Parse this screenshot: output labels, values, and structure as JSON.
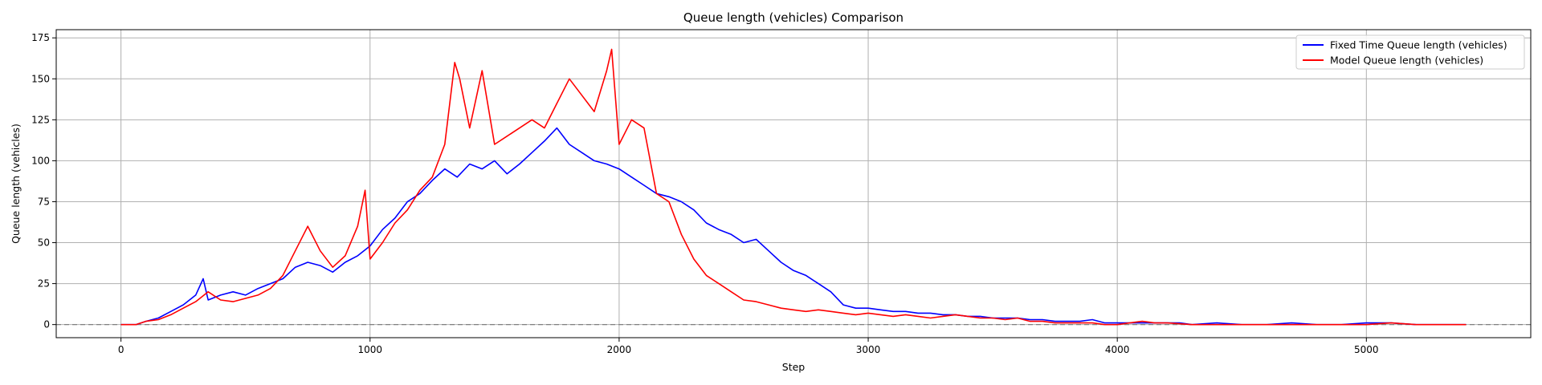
{
  "chart_data": {
    "type": "line",
    "title": "Queue length (vehicles) Comparison",
    "xlabel": "Step",
    "ylabel": "Queue length (vehicles)",
    "xlim": [
      -260,
      5660
    ],
    "ylim": [
      -8,
      180
    ],
    "x_ticks": [
      0,
      1000,
      2000,
      3000,
      4000,
      5000
    ],
    "y_ticks": [
      0,
      25,
      50,
      75,
      100,
      125,
      150,
      175
    ],
    "grid": true,
    "legend_position": "top-right",
    "reference_line": {
      "y": 0,
      "style": "dashed",
      "color": "#808080"
    },
    "series": [
      {
        "name": "Fixed Time Queue length (vehicles)",
        "color": "#0000ff",
        "points": [
          [
            0,
            0
          ],
          [
            60,
            0
          ],
          [
            100,
            2
          ],
          [
            150,
            4
          ],
          [
            200,
            8
          ],
          [
            250,
            12
          ],
          [
            300,
            18
          ],
          [
            330,
            28
          ],
          [
            350,
            15
          ],
          [
            400,
            18
          ],
          [
            450,
            20
          ],
          [
            500,
            18
          ],
          [
            550,
            22
          ],
          [
            600,
            25
          ],
          [
            650,
            28
          ],
          [
            700,
            35
          ],
          [
            750,
            38
          ],
          [
            800,
            36
          ],
          [
            850,
            32
          ],
          [
            900,
            38
          ],
          [
            950,
            42
          ],
          [
            1000,
            48
          ],
          [
            1050,
            58
          ],
          [
            1100,
            65
          ],
          [
            1150,
            75
          ],
          [
            1200,
            80
          ],
          [
            1250,
            88
          ],
          [
            1300,
            95
          ],
          [
            1350,
            90
          ],
          [
            1400,
            98
          ],
          [
            1450,
            95
          ],
          [
            1500,
            100
          ],
          [
            1550,
            92
          ],
          [
            1600,
            98
          ],
          [
            1650,
            105
          ],
          [
            1700,
            112
          ],
          [
            1750,
            120
          ],
          [
            1800,
            110
          ],
          [
            1850,
            105
          ],
          [
            1900,
            100
          ],
          [
            1950,
            98
          ],
          [
            2000,
            95
          ],
          [
            2050,
            90
          ],
          [
            2100,
            85
          ],
          [
            2150,
            80
          ],
          [
            2200,
            78
          ],
          [
            2250,
            75
          ],
          [
            2300,
            70
          ],
          [
            2350,
            62
          ],
          [
            2400,
            58
          ],
          [
            2450,
            55
          ],
          [
            2500,
            50
          ],
          [
            2550,
            52
          ],
          [
            2600,
            45
          ],
          [
            2650,
            38
          ],
          [
            2700,
            33
          ],
          [
            2750,
            30
          ],
          [
            2800,
            25
          ],
          [
            2850,
            20
          ],
          [
            2900,
            12
          ],
          [
            2950,
            10
          ],
          [
            3000,
            10
          ],
          [
            3050,
            9
          ],
          [
            3100,
            8
          ],
          [
            3150,
            8
          ],
          [
            3200,
            7
          ],
          [
            3250,
            7
          ],
          [
            3300,
            6
          ],
          [
            3350,
            6
          ],
          [
            3400,
            5
          ],
          [
            3450,
            5
          ],
          [
            3500,
            4
          ],
          [
            3550,
            4
          ],
          [
            3600,
            4
          ],
          [
            3650,
            3
          ],
          [
            3700,
            3
          ],
          [
            3750,
            2
          ],
          [
            3800,
            2
          ],
          [
            3850,
            2
          ],
          [
            3900,
            3
          ],
          [
            3950,
            1
          ],
          [
            4000,
            1
          ],
          [
            4050,
            1
          ],
          [
            4100,
            1
          ],
          [
            4150,
            1
          ],
          [
            4200,
            1
          ],
          [
            4250,
            1
          ],
          [
            4300,
            0
          ],
          [
            4400,
            1
          ],
          [
            4500,
            0
          ],
          [
            4600,
            0
          ],
          [
            4700,
            1
          ],
          [
            4800,
            0
          ],
          [
            4900,
            0
          ],
          [
            5000,
            1
          ],
          [
            5100,
            1
          ],
          [
            5200,
            0
          ],
          [
            5300,
            0
          ],
          [
            5400,
            0
          ]
        ]
      },
      {
        "name": "Model Queue length (vehicles)",
        "color": "#ff0000",
        "points": [
          [
            0,
            0
          ],
          [
            60,
            0
          ],
          [
            100,
            2
          ],
          [
            150,
            3
          ],
          [
            200,
            6
          ],
          [
            250,
            10
          ],
          [
            300,
            14
          ],
          [
            350,
            20
          ],
          [
            400,
            15
          ],
          [
            450,
            14
          ],
          [
            500,
            16
          ],
          [
            550,
            18
          ],
          [
            600,
            22
          ],
          [
            650,
            30
          ],
          [
            700,
            45
          ],
          [
            750,
            60
          ],
          [
            800,
            45
          ],
          [
            850,
            35
          ],
          [
            900,
            42
          ],
          [
            950,
            60
          ],
          [
            980,
            82
          ],
          [
            1000,
            40
          ],
          [
            1050,
            50
          ],
          [
            1100,
            62
          ],
          [
            1150,
            70
          ],
          [
            1200,
            82
          ],
          [
            1250,
            90
          ],
          [
            1300,
            110
          ],
          [
            1340,
            160
          ],
          [
            1360,
            150
          ],
          [
            1400,
            120
          ],
          [
            1450,
            155
          ],
          [
            1500,
            110
          ],
          [
            1550,
            115
          ],
          [
            1600,
            120
          ],
          [
            1650,
            125
          ],
          [
            1700,
            120
          ],
          [
            1750,
            135
          ],
          [
            1800,
            150
          ],
          [
            1850,
            140
          ],
          [
            1900,
            130
          ],
          [
            1950,
            155
          ],
          [
            1970,
            168
          ],
          [
            2000,
            110
          ],
          [
            2050,
            125
          ],
          [
            2100,
            120
          ],
          [
            2150,
            80
          ],
          [
            2200,
            75
          ],
          [
            2250,
            55
          ],
          [
            2300,
            40
          ],
          [
            2350,
            30
          ],
          [
            2400,
            25
          ],
          [
            2450,
            20
          ],
          [
            2500,
            15
          ],
          [
            2550,
            14
          ],
          [
            2600,
            12
          ],
          [
            2650,
            10
          ],
          [
            2700,
            9
          ],
          [
            2750,
            8
          ],
          [
            2800,
            9
          ],
          [
            2850,
            8
          ],
          [
            2900,
            7
          ],
          [
            2950,
            6
          ],
          [
            3000,
            7
          ],
          [
            3050,
            6
          ],
          [
            3100,
            5
          ],
          [
            3150,
            6
          ],
          [
            3200,
            5
          ],
          [
            3250,
            4
          ],
          [
            3300,
            5
          ],
          [
            3350,
            6
          ],
          [
            3400,
            5
          ],
          [
            3450,
            4
          ],
          [
            3500,
            4
          ],
          [
            3550,
            3
          ],
          [
            3600,
            4
          ],
          [
            3650,
            2
          ],
          [
            3700,
            2
          ],
          [
            3750,
            1
          ],
          [
            3800,
            1
          ],
          [
            3850,
            1
          ],
          [
            3900,
            1
          ],
          [
            3950,
            0
          ],
          [
            4000,
            0
          ],
          [
            4050,
            1
          ],
          [
            4100,
            2
          ],
          [
            4150,
            1
          ],
          [
            4200,
            1
          ],
          [
            4300,
            0
          ],
          [
            4400,
            0
          ],
          [
            4500,
            0
          ],
          [
            4600,
            0
          ],
          [
            4700,
            0
          ],
          [
            4800,
            0
          ],
          [
            4900,
            0
          ],
          [
            5000,
            0
          ],
          [
            5100,
            1
          ],
          [
            5200,
            0
          ],
          [
            5300,
            0
          ],
          [
            5400,
            0
          ]
        ]
      }
    ]
  }
}
